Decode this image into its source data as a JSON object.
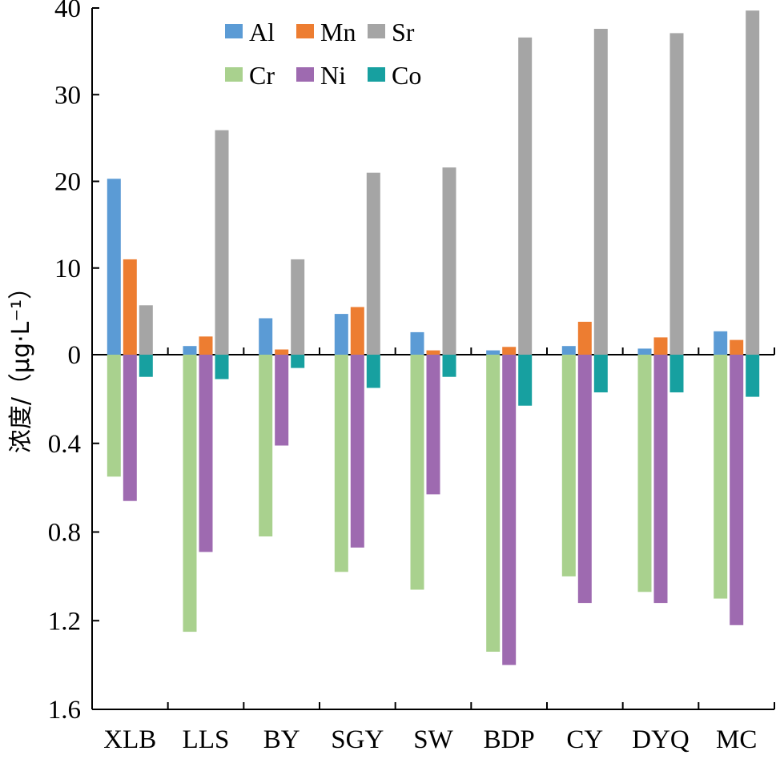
{
  "chart_data": {
    "type": "bar",
    "ylabel": "浓度/（μg·L⁻¹）",
    "categories": [
      "XLB",
      "LLS",
      "BY",
      "SGY",
      "SW",
      "BDP",
      "CY",
      "DYQ",
      "MC"
    ],
    "upper_axis": {
      "ylim": [
        0,
        40
      ],
      "ticks": [
        "0",
        "10",
        "20",
        "30",
        "40"
      ],
      "tick_values": [
        0,
        10,
        20,
        30,
        40
      ]
    },
    "lower_axis": {
      "ylim": [
        0,
        1.6
      ],
      "direction": "downward",
      "ticks": [
        "0.4",
        "0.8",
        "1.2",
        "1.6"
      ],
      "tick_values": [
        0.4,
        0.8,
        1.2,
        1.6
      ]
    },
    "series": [
      {
        "name": "Al",
        "color": "#5b9bd5",
        "axis": "upper",
        "values": [
          20.3,
          1.0,
          4.2,
          4.7,
          2.6,
          0.5,
          1.0,
          0.7,
          2.7
        ]
      },
      {
        "name": "Mn",
        "color": "#ed7d31",
        "axis": "upper",
        "values": [
          11.0,
          2.1,
          0.6,
          5.5,
          0.5,
          0.9,
          3.8,
          2.0,
          1.7
        ]
      },
      {
        "name": "Sr",
        "color": "#a5a5a5",
        "axis": "upper",
        "values": [
          5.7,
          25.9,
          11.0,
          21.0,
          21.6,
          36.6,
          37.6,
          37.1,
          39.7
        ]
      },
      {
        "name": "Cr",
        "color": "#a9d18e",
        "axis": "lower",
        "values": [
          0.55,
          1.25,
          0.82,
          0.98,
          1.06,
          1.34,
          1.0,
          1.07,
          1.1
        ]
      },
      {
        "name": "Ni",
        "color": "#9e6ab0",
        "axis": "lower",
        "values": [
          0.66,
          0.89,
          0.41,
          0.87,
          0.63,
          1.4,
          1.12,
          1.12,
          1.22
        ]
      },
      {
        "name": "Co",
        "color": "#17a0a0",
        "axis": "lower",
        "values": [
          0.1,
          0.11,
          0.06,
          0.15,
          0.1,
          0.23,
          0.17,
          0.17,
          0.19
        ]
      }
    ],
    "legend": {
      "placement": "top-left"
    }
  }
}
